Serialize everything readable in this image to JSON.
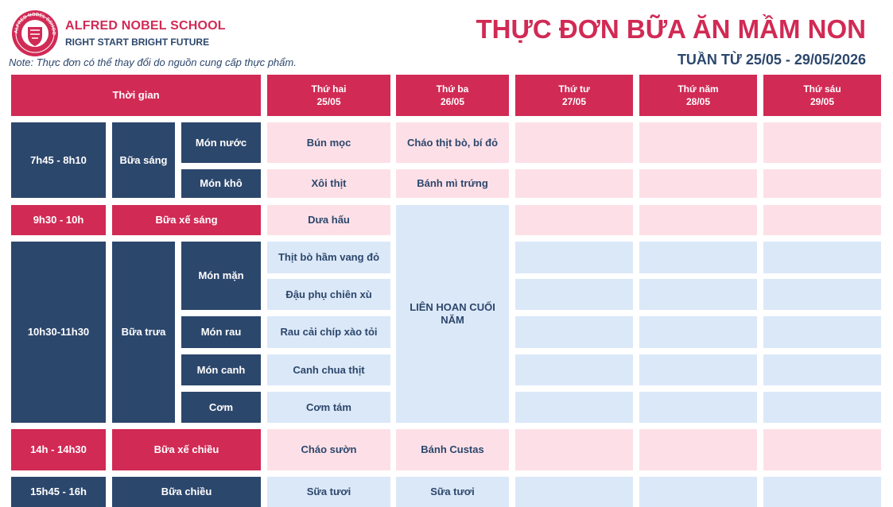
{
  "header": {
    "school_name": "ALFRED NOBEL SCHOOL",
    "slogan": "RIGHT START  BRIGHT FUTURE",
    "logo_ring_text": "ALFRED NOBEL SCHOOL",
    "note": "Note: Thực đơn có thể thay đổi do nguồn cung cấp thực phẩm.",
    "title": "THỰC ĐƠN BỮA ĂN MẦM NON",
    "week": "TUẦN TỪ 25/05 - 29/05/2026"
  },
  "colors": {
    "accent_red": "#d12a55",
    "navy": "#2c476c",
    "pink_cell": "#fde0e7",
    "blue_cell": "#dbe8f8"
  },
  "table": {
    "time_header": "Thời gian",
    "days": [
      {
        "name": "Thứ hai",
        "date": "25/05"
      },
      {
        "name": "Thứ ba",
        "date": "26/05"
      },
      {
        "name": "Thứ tư",
        "date": "27/05"
      },
      {
        "name": "Thứ năm",
        "date": "28/05"
      },
      {
        "name": "Thứ sáu",
        "date": "29/05"
      }
    ],
    "breakfast": {
      "time": "7h45 - 8h10",
      "meal": "Bữa sáng",
      "soup_label": "Món nước",
      "dry_label": "Món khô",
      "mon_soup": "Bún mọc",
      "tue_soup": "Cháo thịt bò, bí đỏ",
      "mon_dry": "Xôi thịt",
      "tue_dry": "Bánh mì trứng"
    },
    "morning_snack": {
      "time": "9h30 - 10h",
      "meal": "Bữa xế sáng",
      "mon": "Dưa hấu"
    },
    "lunch": {
      "time": "10h30-11h30",
      "meal": "Bữa trưa",
      "main_label": "Món mặn",
      "veg_label": "Món rau",
      "soup_label": "Món canh",
      "rice_label": "Cơm",
      "mon_main1": "Thịt bò hầm vang đỏ",
      "mon_main2": "Đậu phụ chiên xù",
      "mon_veg": "Rau cải chíp xào tỏi",
      "mon_soup": "Canh chua thịt",
      "mon_rice": "Cơm tám",
      "tue_event": "LIÊN HOAN CUỐI NĂM"
    },
    "afternoon_snack": {
      "time": "14h - 14h30",
      "meal": "Bữa xế chiều",
      "mon": "Cháo sườn",
      "tue": "Bánh Custas"
    },
    "afternoon": {
      "time": "15h45 - 16h",
      "meal": "Bữa chiều",
      "mon": "Sữa tươi",
      "tue": "Sữa tươi"
    }
  }
}
